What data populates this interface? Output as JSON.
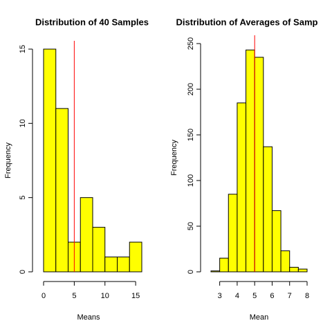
{
  "chart_data": [
    {
      "type": "histogram",
      "title": "Distribution of 40 Samples",
      "xlabel": "Means",
      "ylabel": "Frequency",
      "bins": [
        0,
        2,
        4,
        6,
        8,
        10,
        12,
        14,
        16
      ],
      "values": [
        15,
        11,
        2,
        5,
        3,
        1,
        1,
        2
      ],
      "color": "#ffff00",
      "xlim": [
        0,
        16
      ],
      "ylim": [
        0,
        15
      ],
      "xticks": [
        0,
        5,
        10,
        15
      ],
      "yticks": [
        0,
        5,
        10,
        15
      ],
      "mean_line": {
        "value": 5,
        "color": "#ff0000"
      }
    },
    {
      "type": "histogram",
      "title": "Distribution of Averages of Samp",
      "xlabel": "Mean",
      "ylabel": "Frequency",
      "bins": [
        2.5,
        3,
        3.5,
        4,
        4.5,
        5,
        5.5,
        6,
        6.5,
        7,
        7.5,
        8
      ],
      "values": [
        1,
        15,
        85,
        185,
        243,
        235,
        137,
        67,
        23,
        5,
        3
      ],
      "color": "#ffff00",
      "xlim": [
        2.5,
        8
      ],
      "ylim": [
        0,
        250
      ],
      "xticks": [
        3,
        4,
        5,
        6,
        7,
        8
      ],
      "yticks": [
        0,
        50,
        100,
        150,
        200,
        250
      ],
      "mean_line": {
        "value": 5,
        "color": "#ff0000"
      }
    }
  ]
}
